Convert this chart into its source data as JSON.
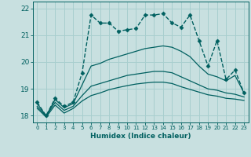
{
  "xlabel": "Humidex (Indice chaleur)",
  "background_color": "#c8e0e0",
  "grid_color": "#a8cece",
  "line_color": "#006060",
  "xlim": [
    -0.5,
    23.5
  ],
  "ylim": [
    17.75,
    22.25
  ],
  "yticks": [
    18,
    19,
    20,
    21,
    22
  ],
  "xticks": [
    0,
    1,
    2,
    3,
    4,
    5,
    6,
    7,
    8,
    9,
    10,
    11,
    12,
    13,
    14,
    15,
    16,
    17,
    18,
    19,
    20,
    21,
    22,
    23
  ],
  "lines": [
    {
      "x": [
        0,
        1,
        2,
        3,
        4,
        5,
        6,
        7,
        8,
        9,
        10,
        11,
        12,
        13,
        14,
        15,
        16,
        17,
        18,
        19,
        20,
        21,
        22,
        23
      ],
      "y": [
        18.5,
        18.0,
        18.65,
        18.35,
        18.5,
        19.6,
        21.75,
        21.45,
        21.45,
        21.15,
        21.2,
        21.25,
        21.75,
        21.75,
        21.8,
        21.45,
        21.3,
        21.75,
        20.8,
        19.85,
        20.8,
        19.35,
        19.7,
        18.85
      ],
      "marker": "D",
      "ms": 2.5,
      "lw": 1.0,
      "ls": "--"
    },
    {
      "x": [
        0,
        1,
        2,
        3,
        4,
        5,
        6,
        7,
        8,
        9,
        10,
        11,
        12,
        13,
        14,
        15,
        16,
        17,
        18,
        19,
        20,
        21,
        22,
        23
      ],
      "y": [
        18.45,
        18.0,
        18.6,
        18.3,
        18.45,
        19.15,
        19.85,
        19.95,
        20.1,
        20.2,
        20.3,
        20.4,
        20.5,
        20.55,
        20.6,
        20.55,
        20.4,
        20.2,
        19.85,
        19.55,
        19.45,
        19.3,
        19.5,
        18.85
      ],
      "marker": null,
      "ms": 0,
      "lw": 0.9,
      "ls": "-"
    },
    {
      "x": [
        0,
        1,
        2,
        3,
        4,
        5,
        6,
        7,
        8,
        9,
        10,
        11,
        12,
        13,
        14,
        15,
        16,
        17,
        18,
        19,
        20,
        21,
        22,
        23
      ],
      "y": [
        18.35,
        17.98,
        18.5,
        18.2,
        18.35,
        18.75,
        19.1,
        19.2,
        19.3,
        19.4,
        19.5,
        19.55,
        19.6,
        19.65,
        19.65,
        19.6,
        19.45,
        19.3,
        19.15,
        19.0,
        18.95,
        18.85,
        18.8,
        18.7
      ],
      "marker": null,
      "ms": 0,
      "lw": 0.9,
      "ls": "-"
    },
    {
      "x": [
        0,
        1,
        2,
        3,
        4,
        5,
        6,
        7,
        8,
        9,
        10,
        11,
        12,
        13,
        14,
        15,
        16,
        17,
        18,
        19,
        20,
        21,
        22,
        23
      ],
      "y": [
        18.28,
        17.95,
        18.4,
        18.1,
        18.27,
        18.55,
        18.75,
        18.85,
        18.97,
        19.05,
        19.12,
        19.18,
        19.22,
        19.25,
        19.25,
        19.2,
        19.08,
        18.98,
        18.88,
        18.78,
        18.73,
        18.65,
        18.62,
        18.57
      ],
      "marker": null,
      "ms": 0,
      "lw": 0.9,
      "ls": "-"
    }
  ]
}
